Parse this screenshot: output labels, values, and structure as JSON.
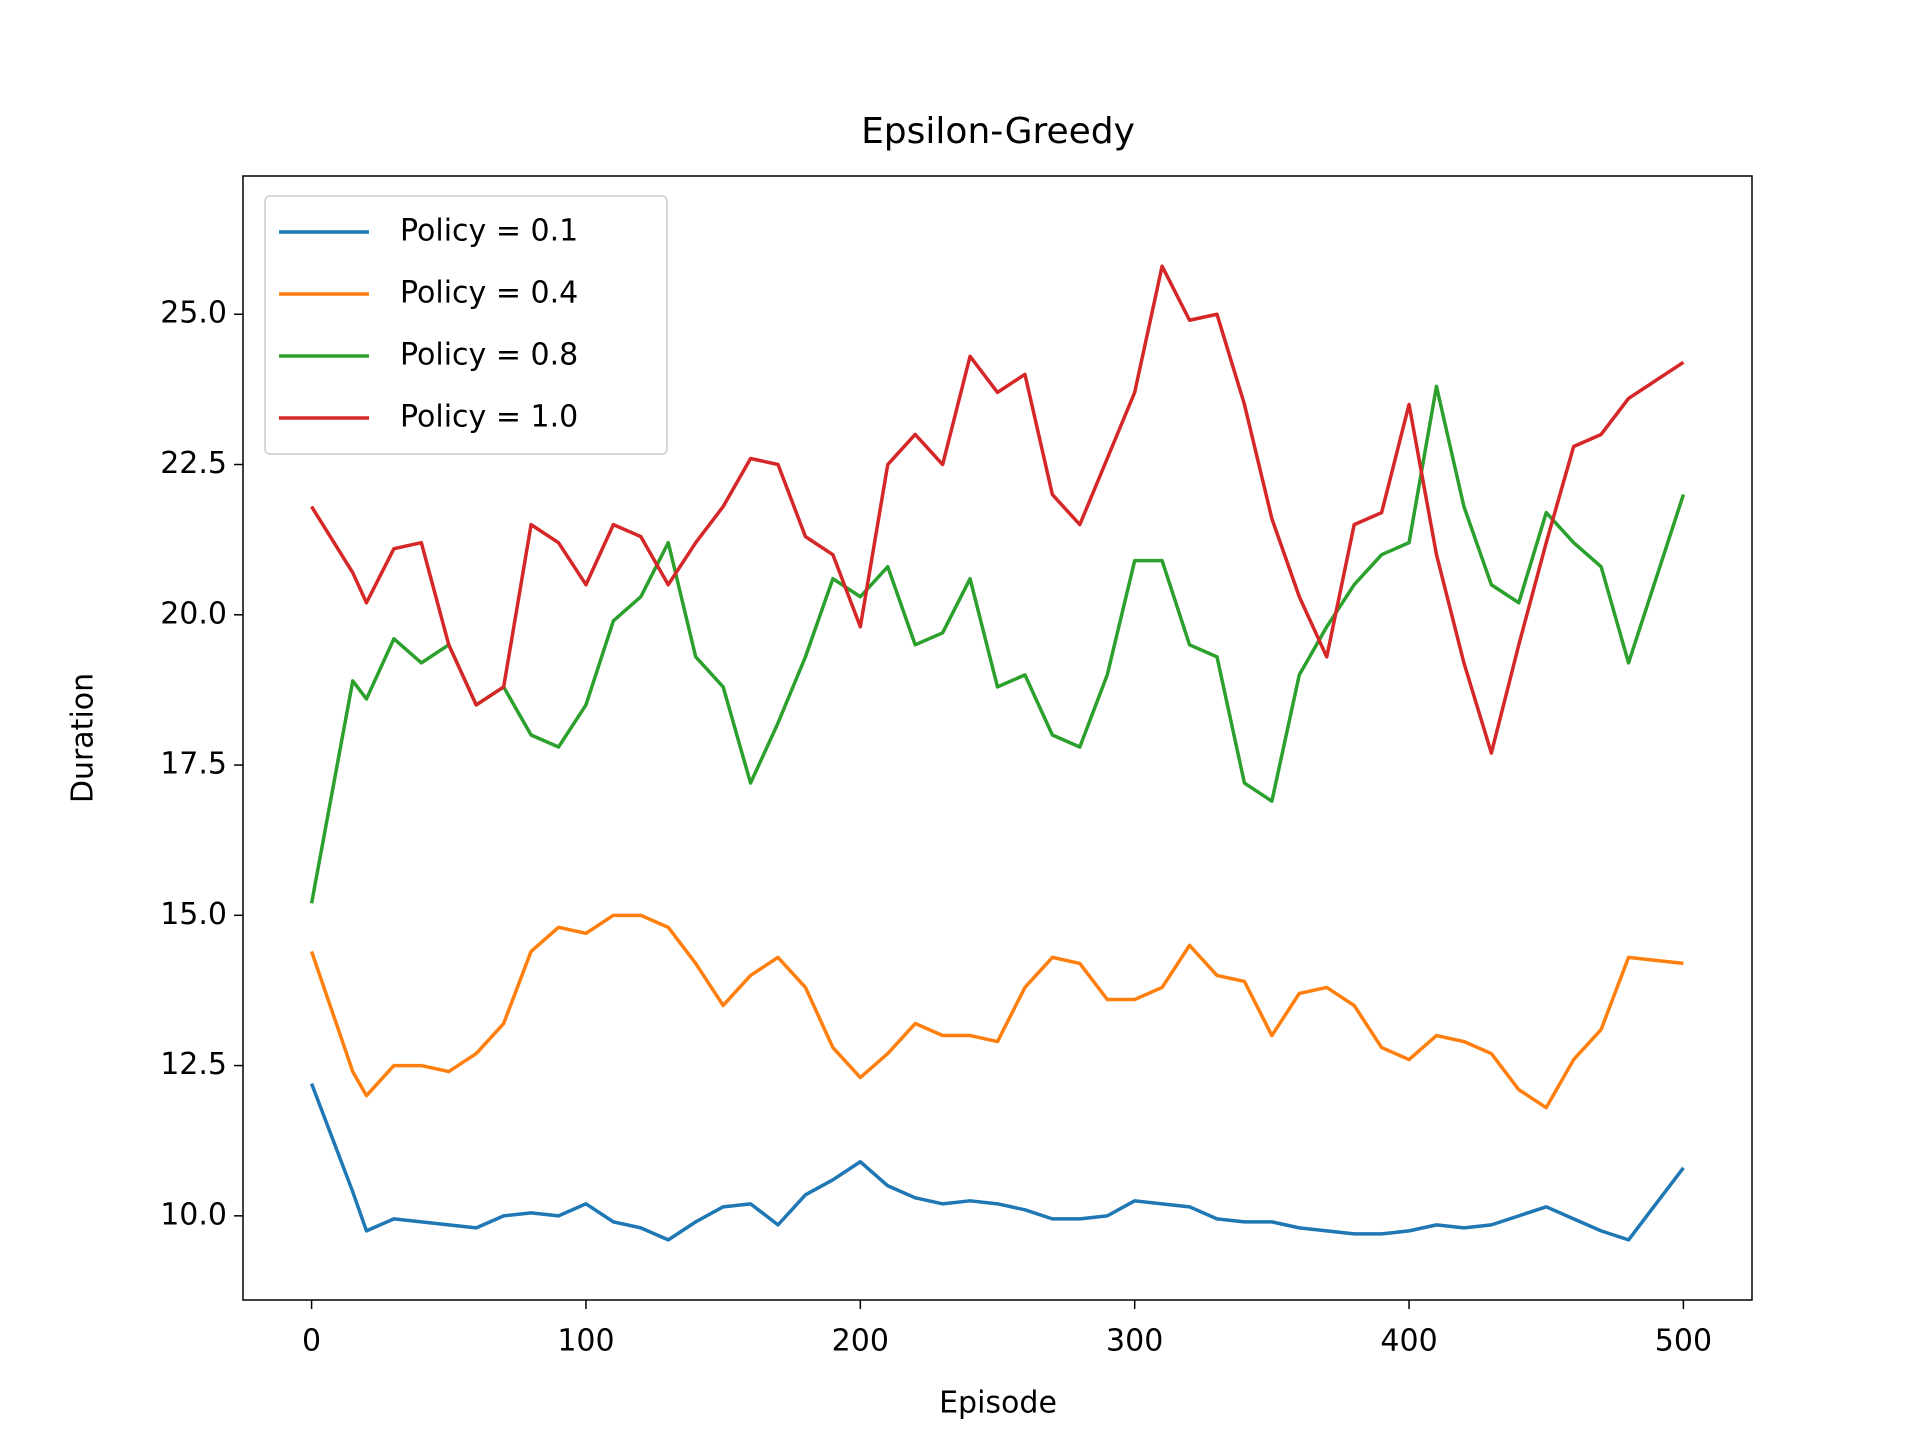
{
  "chart_data": {
    "type": "line",
    "title": "Epsilon-Greedy",
    "xlabel": "Episode",
    "ylabel": "Duration",
    "x": [
      0,
      15,
      20,
      30,
      40,
      50,
      60,
      70,
      80,
      90,
      100,
      110,
      120,
      130,
      140,
      150,
      160,
      170,
      180,
      190,
      200,
      210,
      220,
      230,
      240,
      250,
      260,
      270,
      280,
      290,
      300,
      310,
      320,
      330,
      340,
      350,
      360,
      370,
      380,
      390,
      400,
      410,
      420,
      430,
      440,
      450,
      460,
      470,
      480,
      500
    ],
    "series": [
      {
        "name": "Policy = 0.1",
        "color": "#1f77b4",
        "values": [
          12.2,
          10.4,
          9.75,
          9.95,
          9.9,
          9.85,
          9.8,
          10.0,
          10.05,
          10.0,
          10.2,
          9.9,
          9.8,
          9.6,
          9.9,
          10.15,
          10.2,
          9.85,
          10.35,
          10.6,
          10.9,
          10.5,
          10.3,
          10.2,
          10.25,
          10.2,
          10.1,
          9.95,
          9.95,
          10.0,
          10.25,
          10.2,
          10.15,
          9.95,
          9.9,
          9.9,
          9.8,
          9.75,
          9.7,
          9.7,
          9.75,
          9.85,
          9.8,
          9.85,
          10.0,
          10.15,
          9.95,
          9.75,
          9.6,
          10.8
        ]
      },
      {
        "name": "Policy = 0.4",
        "color": "#ff7f0e",
        "values": [
          14.4,
          12.4,
          12.0,
          12.5,
          12.5,
          12.4,
          12.7,
          13.2,
          14.4,
          14.8,
          14.7,
          15.0,
          15.0,
          14.8,
          14.2,
          13.5,
          14.0,
          14.3,
          13.8,
          12.8,
          12.3,
          12.7,
          13.2,
          13.0,
          13.0,
          12.9,
          13.8,
          14.3,
          14.2,
          13.6,
          13.6,
          13.8,
          14.5,
          14.0,
          13.9,
          13.0,
          13.7,
          13.8,
          13.5,
          12.8,
          12.6,
          13.0,
          12.9,
          12.7,
          12.1,
          11.8,
          12.6,
          13.1,
          14.3,
          14.2
        ]
      },
      {
        "name": "Policy = 0.8",
        "color": "#2ca02c",
        "values": [
          15.2,
          18.9,
          18.6,
          19.6,
          19.2,
          19.5,
          18.5,
          18.8,
          18.0,
          17.8,
          18.5,
          19.9,
          20.3,
          21.2,
          19.3,
          18.8,
          17.2,
          18.2,
          19.3,
          20.6,
          20.3,
          20.8,
          19.5,
          19.7,
          20.6,
          18.8,
          19.0,
          18.0,
          17.8,
          19.0,
          20.9,
          20.9,
          19.5,
          19.3,
          17.2,
          16.9,
          19.0,
          19.8,
          20.5,
          21.0,
          21.2,
          23.8,
          21.8,
          20.5,
          20.2,
          21.7,
          21.2,
          20.8,
          19.2,
          22.0
        ]
      },
      {
        "name": "Policy = 1.0",
        "color": "#d62728",
        "values": [
          21.8,
          20.7,
          20.2,
          21.1,
          21.2,
          19.5,
          18.5,
          18.8,
          21.5,
          21.2,
          20.5,
          21.5,
          21.3,
          20.5,
          21.2,
          21.8,
          22.6,
          22.5,
          21.3,
          21.0,
          19.8,
          22.5,
          23.0,
          22.5,
          24.3,
          23.7,
          24.0,
          22.0,
          21.5,
          22.6,
          23.7,
          25.8,
          24.9,
          25.0,
          23.5,
          21.6,
          20.3,
          19.3,
          21.5,
          21.7,
          23.5,
          21.0,
          19.2,
          17.7,
          19.5,
          21.2,
          22.8,
          23.0,
          23.6,
          24.2
        ]
      }
    ],
    "xlim": [
      -25,
      525
    ],
    "xticks": [
      0,
      100,
      200,
      300,
      400,
      500
    ],
    "ylim": [
      8.6,
      27.3
    ],
    "yticks": [
      {
        "value": 10,
        "label": "10.0"
      },
      12.5,
      {
        "value": 15,
        "label": "15.0"
      },
      17.5,
      {
        "value": 20,
        "label": "20.0"
      },
      22.5,
      {
        "value": 25,
        "label": "25.0"
      }
    ],
    "grid": false,
    "legend": "upper left"
  }
}
